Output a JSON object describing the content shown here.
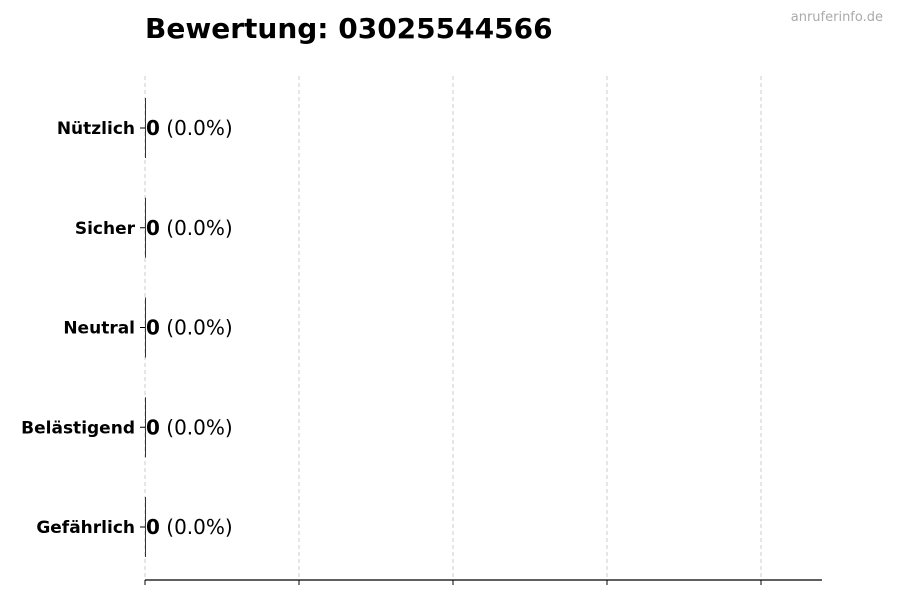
{
  "chart_data": {
    "type": "bar",
    "orientation": "horizontal",
    "title": "Bewertung: 03025544566",
    "watermark": "anruferinfo.de",
    "categories": [
      "Nützlich",
      "Sicher",
      "Neutral",
      "Belästigend",
      "Gefährlich"
    ],
    "values": [
      0,
      0,
      0,
      0,
      0
    ],
    "labels": [
      "(0.0%)",
      "(0.0%)",
      "(0.0%)",
      "(0.0%)",
      "(0.0%)"
    ],
    "grid": "x-dashed",
    "colors": {
      "bar": "#333333",
      "grid": "#cccccc",
      "watermark": "#aaaaaa"
    }
  }
}
